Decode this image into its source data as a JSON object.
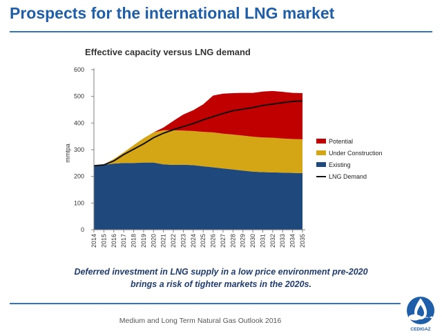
{
  "slide": {
    "title": "Prospects for the international LNG market",
    "caption_line1": "Deferred investment in LNG supply in a low price environment pre-2020",
    "caption_line2": "brings a risk of tighter markets in the 2020s.",
    "footer": "Medium and Long Term Natural Gas Outlook 2016",
    "logo_text": "CEDIGAZ"
  },
  "colors": {
    "title": "#1f5ea8",
    "rule": "#2e74c0",
    "existing": "#1f497d",
    "under_construction": "#d4a514",
    "potential": "#c00000",
    "demand": "#111111"
  },
  "chart_data": {
    "type": "area",
    "title": "Effective capacity versus LNG demand",
    "ylabel": "mmtpa",
    "xlabel": "",
    "ylim": [
      0,
      600
    ],
    "yticks": [
      0,
      100,
      200,
      300,
      400,
      500,
      600
    ],
    "grid": false,
    "stacked": true,
    "legend_position": "right",
    "x": [
      2014,
      2015,
      2016,
      2017,
      2018,
      2019,
      2020,
      2021,
      2022,
      2023,
      2024,
      2025,
      2026,
      2027,
      2028,
      2029,
      2030,
      2031,
      2032,
      2033,
      2034,
      2035
    ],
    "series": [
      {
        "name": "Existing",
        "kind": "area",
        "color_key": "existing",
        "values": [
          240,
          243,
          248,
          250,
          250,
          252,
          252,
          245,
          243,
          244,
          242,
          238,
          234,
          230,
          226,
          222,
          218,
          216,
          215,
          214,
          213,
          212
        ]
      },
      {
        "name": "Under Construction",
        "kind": "area",
        "color_key": "under_construction",
        "values": [
          0,
          2,
          17,
          40,
          67,
          91,
          113,
          128,
          130,
          128,
          128,
          129,
          131,
          130,
          131,
          131,
          131,
          130,
          130,
          128,
          127,
          127
        ]
      },
      {
        "name": "Potential",
        "kind": "area",
        "color_key": "potential",
        "values": [
          0,
          0,
          0,
          0,
          0,
          0,
          0,
          10,
          35,
          60,
          78,
          103,
          138,
          150,
          155,
          160,
          164,
          172,
          175,
          175,
          173,
          173
        ]
      },
      {
        "name": "LNG Demand",
        "kind": "line",
        "color_key": "demand",
        "values": [
          240,
          243,
          258,
          282,
          302,
          322,
          345,
          362,
          375,
          387,
          398,
          412,
          424,
          436,
          446,
          452,
          458,
          466,
          471,
          476,
          481,
          483
        ]
      }
    ],
    "legend_order": [
      "Potential",
      "Under Construction",
      "Existing",
      "LNG Demand"
    ]
  }
}
